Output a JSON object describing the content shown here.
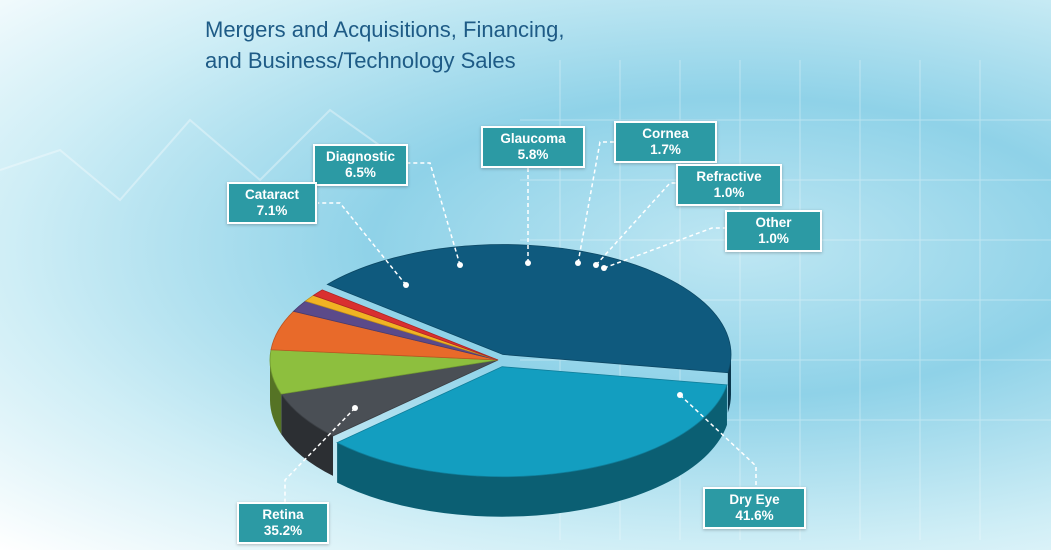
{
  "title_line1": "Mergers and Acquisitions, Financing,",
  "title_line2": "and Business/Technology Sales",
  "chart_data": {
    "type": "pie",
    "title": "Mergers and Acquisitions, Financing, and Business/Technology Sales",
    "unit": "%",
    "slices": [
      {
        "label": "Dry Eye",
        "value": 41.6,
        "display": "41.6%",
        "color": "#0f5a7e"
      },
      {
        "label": "Retina",
        "value": 35.2,
        "display": "35.2%",
        "color": "#139ec0"
      },
      {
        "label": "Cataract",
        "value": 7.1,
        "display": "7.1%",
        "color": "#4a4f55"
      },
      {
        "label": "Diagnostic",
        "value": 6.5,
        "display": "6.5%",
        "color": "#8dbf3e"
      },
      {
        "label": "Glaucoma",
        "value": 5.8,
        "display": "5.8%",
        "color": "#e86a2a"
      },
      {
        "label": "Cornea",
        "value": 1.7,
        "display": "1.7%",
        "color": "#5b4a8a"
      },
      {
        "label": "Refractive",
        "value": 1.0,
        "display": "1.0%",
        "color": "#f0b323"
      },
      {
        "label": "Other",
        "value": 1.0,
        "display": "1.0%",
        "color": "#d93030"
      }
    ]
  }
}
